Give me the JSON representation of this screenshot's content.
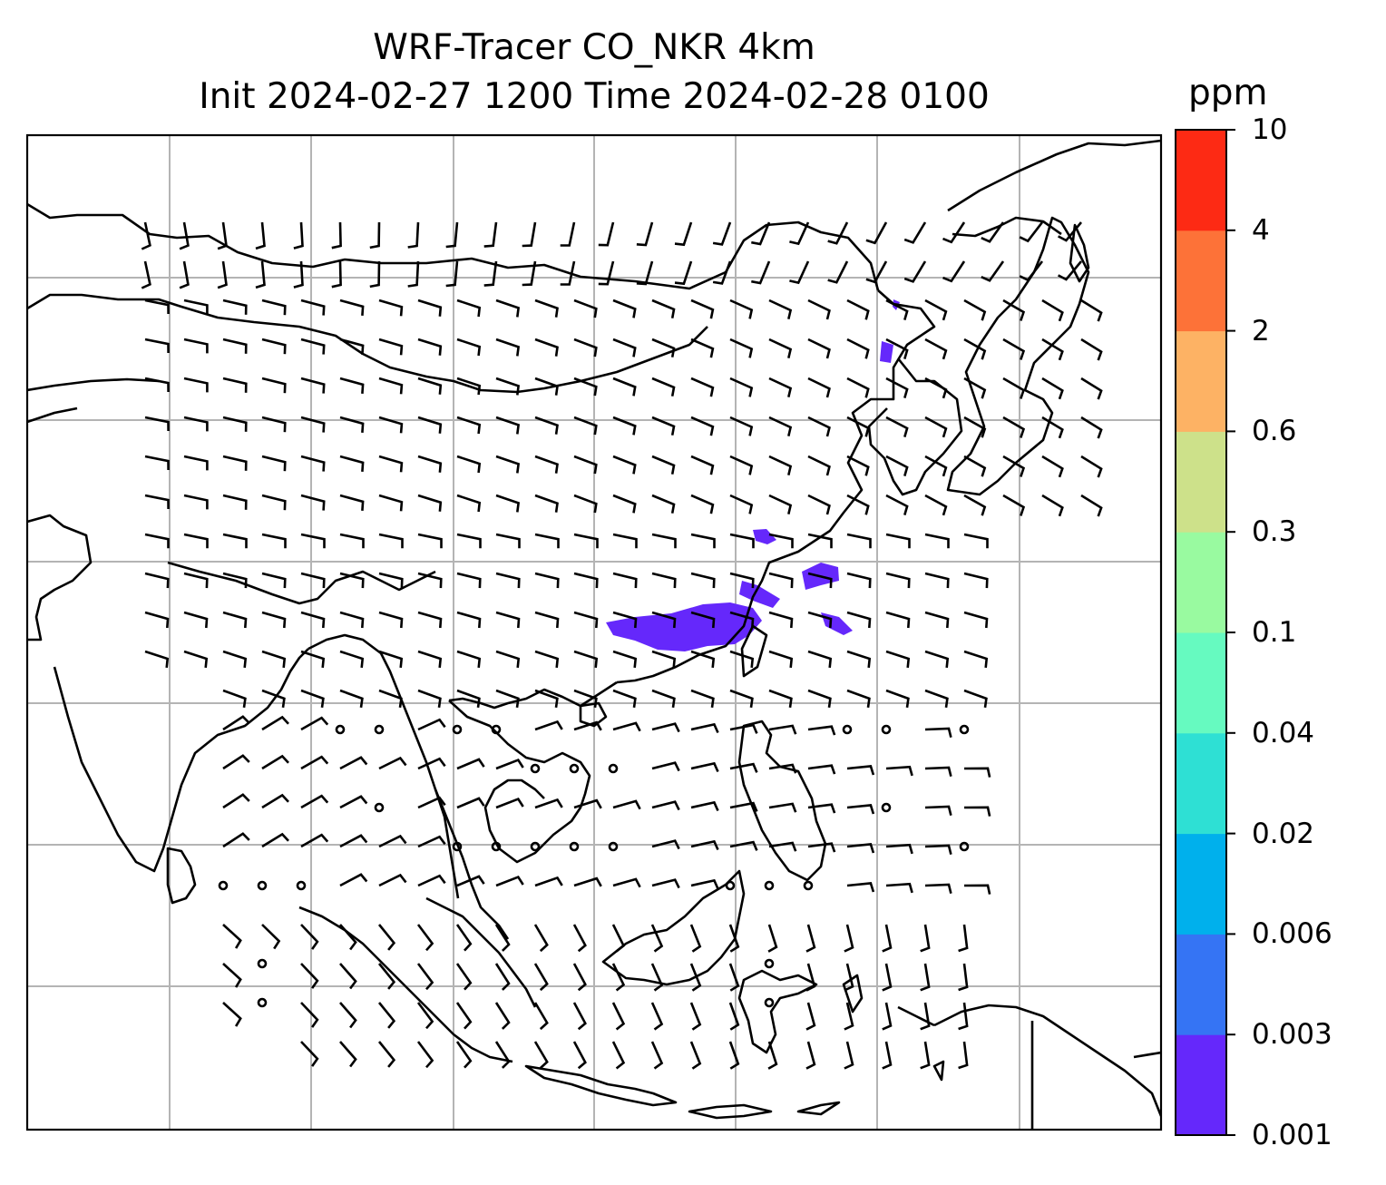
{
  "title_line1": "WRF-Tracer CO_NKR 4km",
  "title_line2": "Init 2024-02-27 1200 Time 2024-02-28 0100",
  "colorbar": {
    "unit": "ppm",
    "levels": [
      "0.001",
      "0.003",
      "0.006",
      "0.02",
      "0.04",
      "0.1",
      "0.3",
      "0.6",
      "2",
      "4",
      "10"
    ],
    "colors": [
      "#6528fb",
      "#3574f4",
      "#00b0ec",
      "#2ee0d4",
      "#66fac0",
      "#99faa0",
      "#cde18a",
      "#fdb264",
      "#fd7238",
      "#fd2a14"
    ]
  },
  "plume_color": "#6528fb",
  "coastline_color": "#000000",
  "gridline_color": "#b4b4b4"
}
